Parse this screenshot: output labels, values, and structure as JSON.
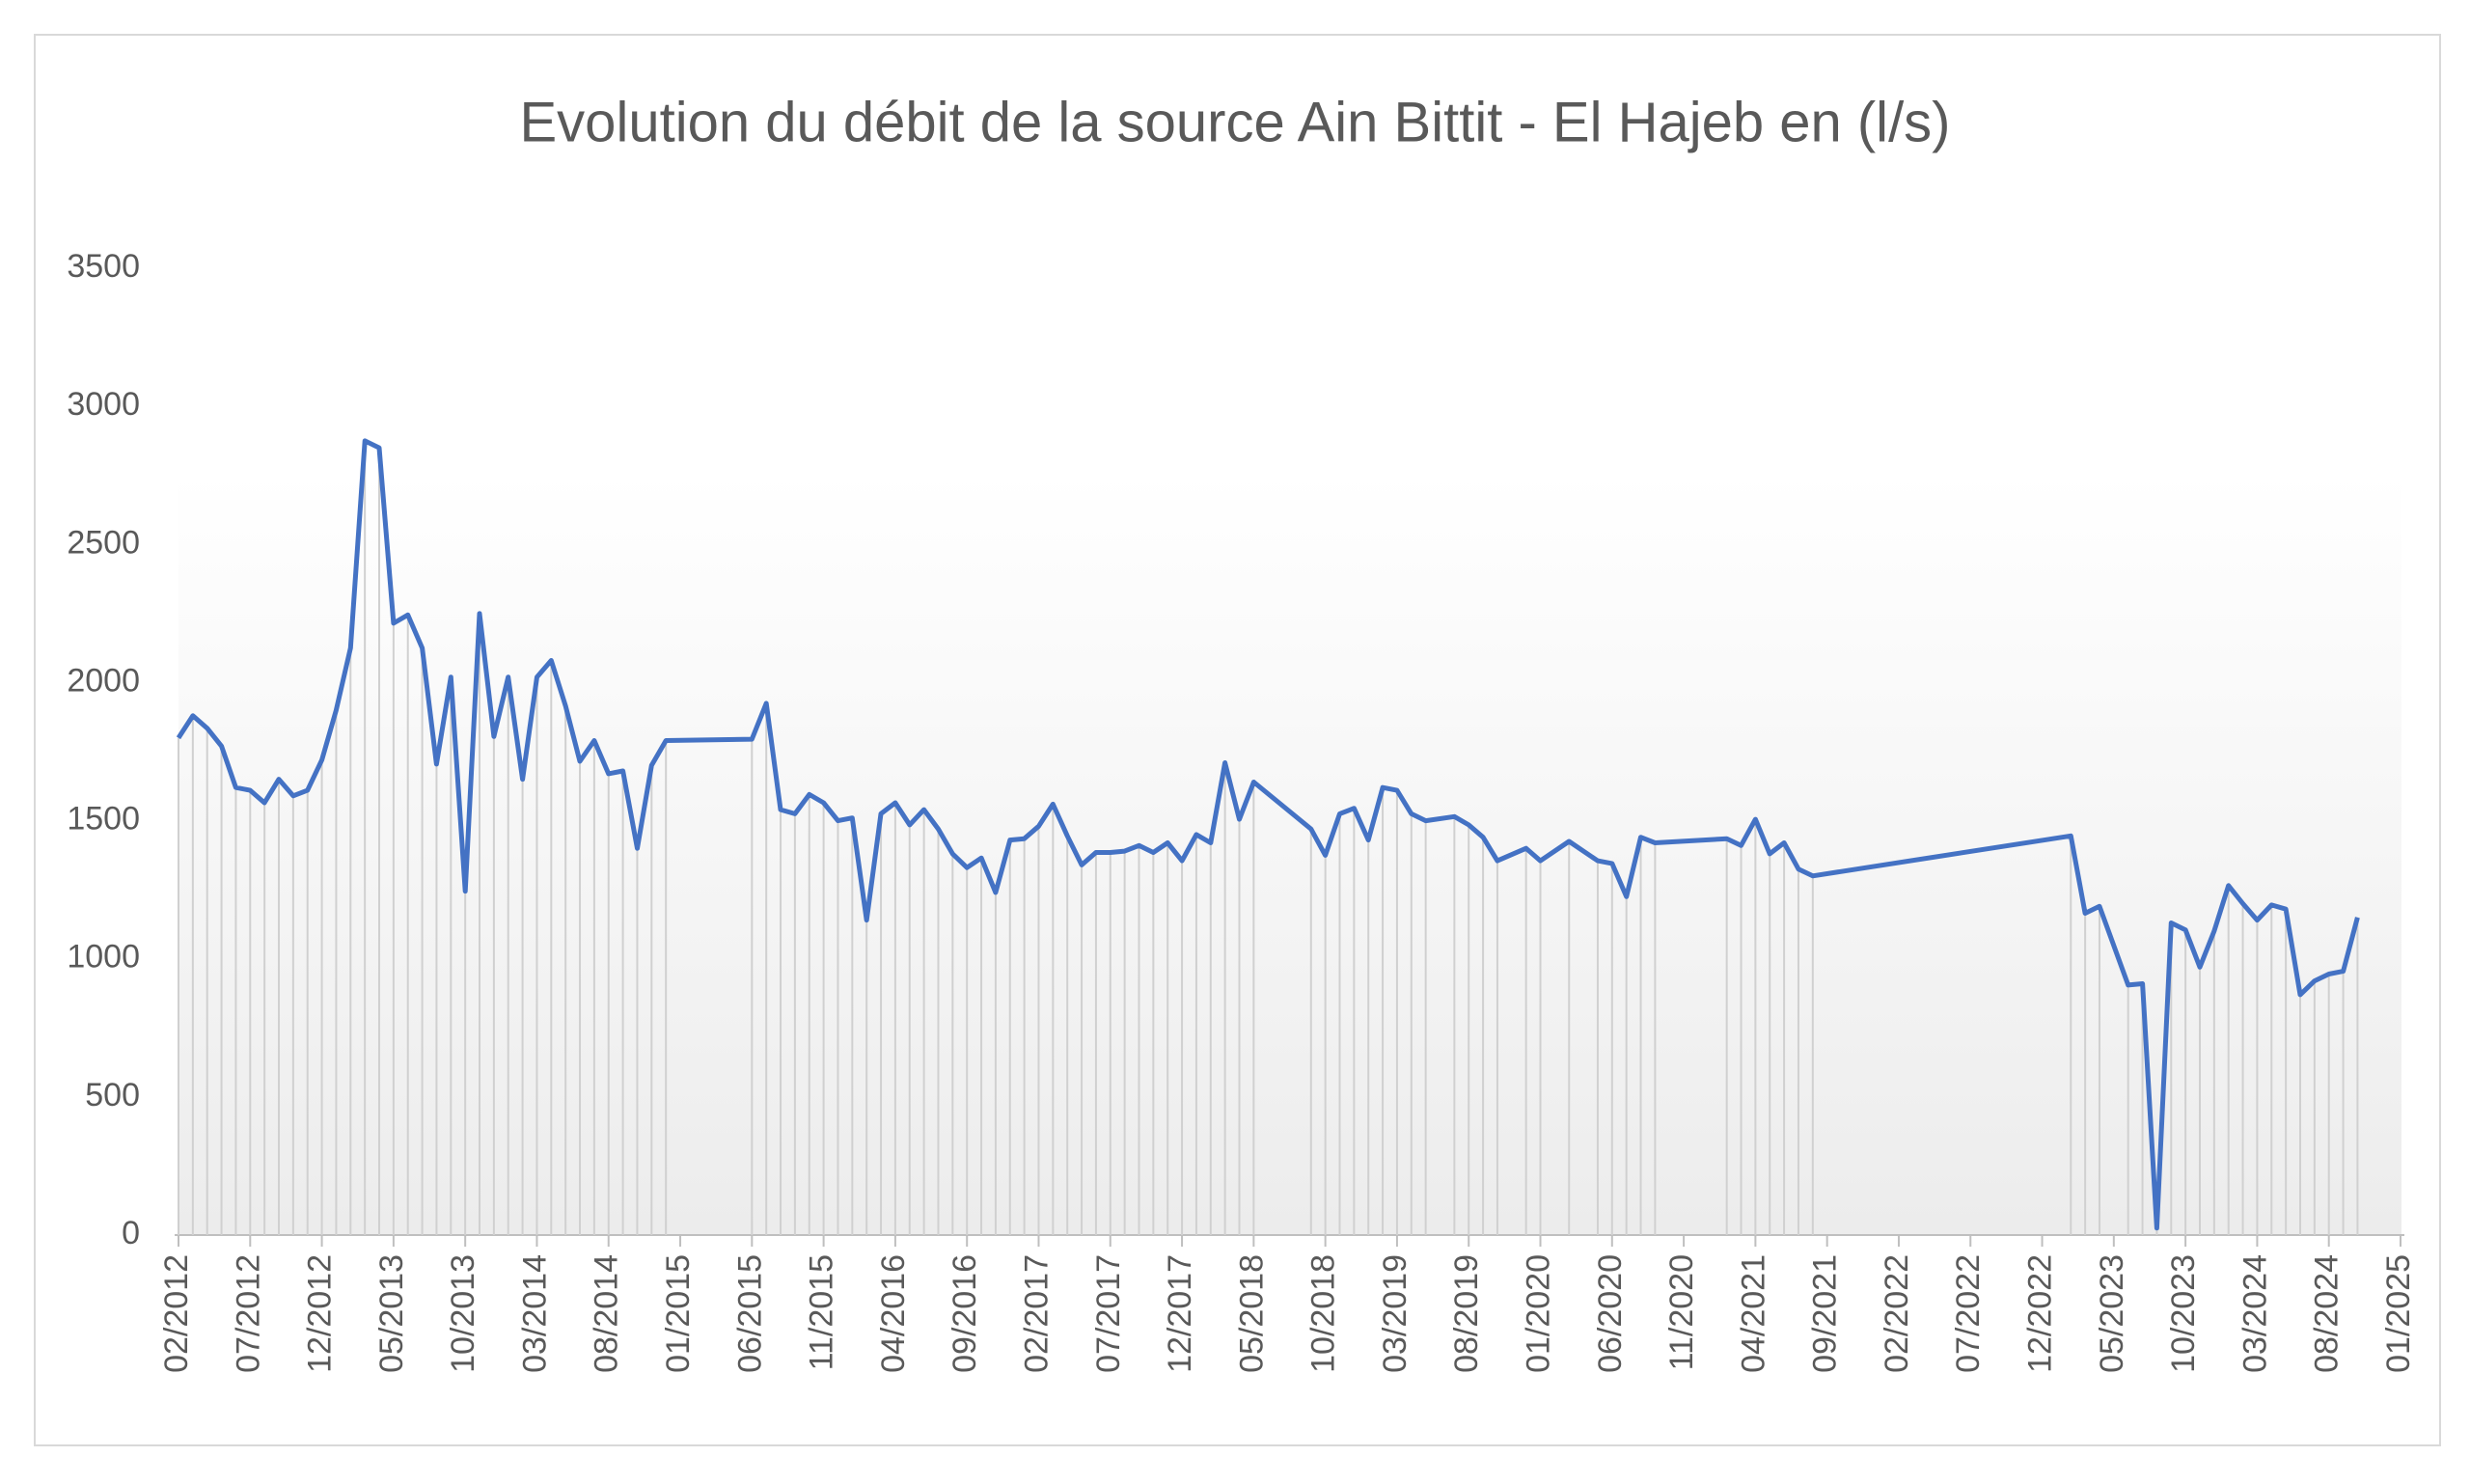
{
  "chart_data": {
    "type": "line",
    "title": "Evolution du débit de la source Ain Bittit - El Hajeb en (l/s)",
    "color": "#4472c4",
    "drop_lines": true,
    "x": [
      "02/2012",
      "03/2012",
      "04/2012",
      "05/2012",
      "06/2012",
      "07/2012",
      "08/2012",
      "09/2012",
      "10/2012",
      "11/2012",
      "12/2012",
      "01/2013",
      "02/2013",
      "03/2013",
      "04/2013",
      "05/2013",
      "06/2013",
      "07/2013",
      "08/2013",
      "09/2013",
      "10/2013",
      "11/2013",
      "12/2013",
      "01/2014",
      "02/2014",
      "03/2014",
      "04/2014",
      "05/2014",
      "06/2014",
      "07/2014",
      "08/2014",
      "09/2014",
      "10/2014",
      "11/2014",
      "12/2014",
      "06/2015",
      "07/2015",
      "08/2015",
      "09/2015",
      "10/2015",
      "11/2015",
      "12/2015",
      "01/2016",
      "02/2016",
      "03/2016",
      "04/2016",
      "05/2016",
      "06/2016",
      "07/2016",
      "08/2016",
      "09/2016",
      "10/2016",
      "11/2016",
      "12/2016",
      "01/2017",
      "02/2017",
      "03/2017",
      "04/2017",
      "05/2017",
      "06/2017",
      "07/2017",
      "08/2017",
      "09/2017",
      "10/2017",
      "11/2017",
      "12/2017",
      "01/2018",
      "02/2018",
      "03/2018",
      "04/2018",
      "05/2018",
      "09/2018",
      "10/2018",
      "11/2018",
      "12/2018",
      "01/2019",
      "02/2019",
      "03/2019",
      "04/2019",
      "05/2019",
      "07/2019",
      "08/2019",
      "09/2019",
      "10/2019",
      "12/2019",
      "01/2020",
      "03/2020",
      "05/2020",
      "06/2020",
      "07/2020",
      "08/2020",
      "09/2020",
      "02/2021",
      "03/2021",
      "04/2021",
      "05/2021",
      "06/2021",
      "07/2021",
      "08/2021",
      "02/2023",
      "03/2023",
      "04/2023",
      "06/2023",
      "07/2023",
      "08/2023",
      "09/2023",
      "10/2023",
      "11/2023",
      "12/2023",
      "01/2024",
      "02/2024",
      "03/2024",
      "04/2024",
      "05/2024",
      "06/2024",
      "07/2024",
      "08/2024",
      "09/2024",
      "10/2024"
    ],
    "values": [
      1800,
      1880,
      1835,
      1770,
      1620,
      1610,
      1565,
      1650,
      1590,
      1610,
      1720,
      1900,
      2125,
      2875,
      2850,
      2215,
      2245,
      2125,
      1705,
      2020,
      1245,
      2250,
      1805,
      2020,
      1650,
      2020,
      2080,
      1915,
      1715,
      1790,
      1670,
      1680,
      1400,
      1700,
      1790,
      1795,
      1925,
      1540,
      1525,
      1595,
      1565,
      1500,
      1510,
      1140,
      1525,
      1565,
      1485,
      1540,
      1470,
      1380,
      1330,
      1365,
      1240,
      1430,
      1435,
      1480,
      1560,
      1445,
      1340,
      1385,
      1385,
      1390,
      1410,
      1385,
      1420,
      1355,
      1450,
      1420,
      1710,
      1505,
      1640,
      1470,
      1375,
      1525,
      1545,
      1430,
      1620,
      1610,
      1525,
      1500,
      1515,
      1485,
      1440,
      1355,
      1400,
      1355,
      1425,
      1355,
      1345,
      1225,
      1440,
      1420,
      1435,
      1410,
      1505,
      1380,
      1420,
      1325,
      1300,
      1445,
      1165,
      1190,
      905,
      910,
      25,
      1130,
      1105,
      970,
      1100,
      1265,
      1200,
      1140,
      1195,
      1180,
      870,
      920,
      945,
      955,
      1150
    ],
    "xlim": [
      "02/2012",
      "01/2025"
    ],
    "xticks": [
      "02/2012",
      "07/2012",
      "12/2012",
      "05/2013",
      "10/2013",
      "03/2014",
      "08/2014",
      "01/2015",
      "06/2015",
      "11/2015",
      "04/2016",
      "09/2016",
      "02/2017",
      "07/2017",
      "12/2017",
      "05/2018",
      "10/2018",
      "03/2019",
      "08/2019",
      "01/2020",
      "06/2020",
      "11/2020",
      "04/2021",
      "09/2021",
      "02/2022",
      "07/2022",
      "12/2022",
      "05/2023",
      "10/2023",
      "03/2024",
      "08/2024",
      "01/2025"
    ],
    "ylim": [
      0,
      3500
    ],
    "yticks": [
      0,
      500,
      1000,
      1500,
      2000,
      2500,
      3000,
      3500
    ]
  }
}
